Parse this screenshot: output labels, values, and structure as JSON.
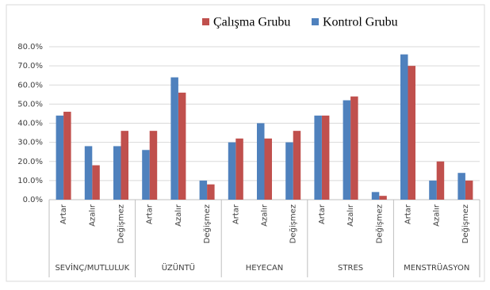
{
  "chart_data": {
    "type": "bar",
    "categories": [
      "Artar",
      "Azalır",
      "Değişmez",
      "Artar",
      "Azalır",
      "Değişmez",
      "Artar",
      "Azalır",
      "Değişmez",
      "Artar",
      "Azalır",
      "Değişmez",
      "Artar",
      "Azalır",
      "Değişmez"
    ],
    "groups": [
      "SEVİNÇ/MUTLULUK",
      "ÜZÜNTÜ",
      "HEYECAN",
      "STRES",
      "MENSTRÜASYON"
    ],
    "series": [
      {
        "name": "Çalışma Grubu",
        "color": "#c0504d",
        "values": [
          46,
          18,
          36,
          36,
          56,
          8,
          32,
          32,
          36,
          44,
          54,
          2,
          70,
          20,
          10
        ]
      },
      {
        "name": "Kontrol Grubu",
        "color": "#4f81bd",
        "values": [
          44,
          28,
          28,
          26,
          64,
          10,
          30,
          40,
          30,
          44,
          52,
          4,
          76,
          10,
          14
        ]
      }
    ],
    "ylim": [
      0,
      80
    ],
    "yticks": [
      {
        "value": 0,
        "label": "0.0%"
      },
      {
        "value": 10,
        "label": "10.0%"
      },
      {
        "value": 20,
        "label": "20.0%"
      },
      {
        "value": 30,
        "label": "30.0%"
      },
      {
        "value": 40,
        "label": "40.0%"
      },
      {
        "value": 50,
        "label": "50.0%"
      },
      {
        "value": 60,
        "label": "60.0%"
      },
      {
        "value": 70,
        "label": "70.0%"
      },
      {
        "value": 80,
        "label": "80.0%"
      }
    ],
    "grid": true
  }
}
